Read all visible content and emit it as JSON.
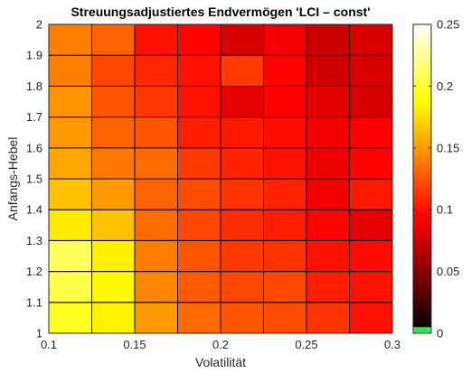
{
  "chart_data": {
    "type": "heatmap",
    "title": "Streuungsadjustiertes Endvermögen 'LCI – const'",
    "xlabel": "Volatilität",
    "ylabel": "Anfangs-Hebel",
    "x_ticks": [
      "0.1",
      "0.15",
      "0.2",
      "0.25",
      "0.3"
    ],
    "y_ticks": [
      "1",
      "1.1",
      "1.2",
      "1.3",
      "1.4",
      "1.5",
      "1.6",
      "1.7",
      "1.8",
      "1.9",
      "2"
    ],
    "colorbar_ticks": [
      "0",
      "0.05",
      "0.1",
      "0.15",
      "0.2",
      "0.25"
    ],
    "colormap": "hot",
    "clim": [
      0,
      0.25
    ],
    "xlim": [
      0.1,
      0.3
    ],
    "ylim": [
      1,
      2
    ],
    "grid": false,
    "x_centers": [
      0.1125,
      0.1375,
      0.1625,
      0.1875,
      0.2125,
      0.2375,
      0.2625,
      0.2875
    ],
    "y_centers": [
      1.05,
      1.15,
      1.25,
      1.35,
      1.45,
      1.55,
      1.65,
      1.75,
      1.85,
      1.95
    ],
    "values": [
      [
        0.195,
        0.183,
        0.15,
        0.133,
        0.125,
        0.122,
        0.113,
        0.1
      ],
      [
        0.205,
        0.185,
        0.143,
        0.127,
        0.12,
        0.12,
        0.105,
        0.1
      ],
      [
        0.21,
        0.182,
        0.14,
        0.125,
        0.115,
        0.112,
        0.1,
        0.098
      ],
      [
        0.18,
        0.165,
        0.133,
        0.12,
        0.11,
        0.105,
        0.095,
        0.085
      ],
      [
        0.165,
        0.15,
        0.13,
        0.122,
        0.113,
        0.107,
        0.09,
        0.103
      ],
      [
        0.155,
        0.137,
        0.133,
        0.115,
        0.106,
        0.1,
        0.088,
        0.095
      ],
      [
        0.15,
        0.13,
        0.125,
        0.105,
        0.103,
        0.098,
        0.09,
        0.093
      ],
      [
        0.148,
        0.125,
        0.114,
        0.1,
        0.085,
        0.093,
        0.083,
        0.08
      ],
      [
        0.14,
        0.12,
        0.108,
        0.1,
        0.115,
        0.095,
        0.077,
        0.08
      ],
      [
        0.14,
        0.13,
        0.1,
        0.095,
        0.08,
        0.09,
        0.075,
        0.08
      ]
    ]
  }
}
